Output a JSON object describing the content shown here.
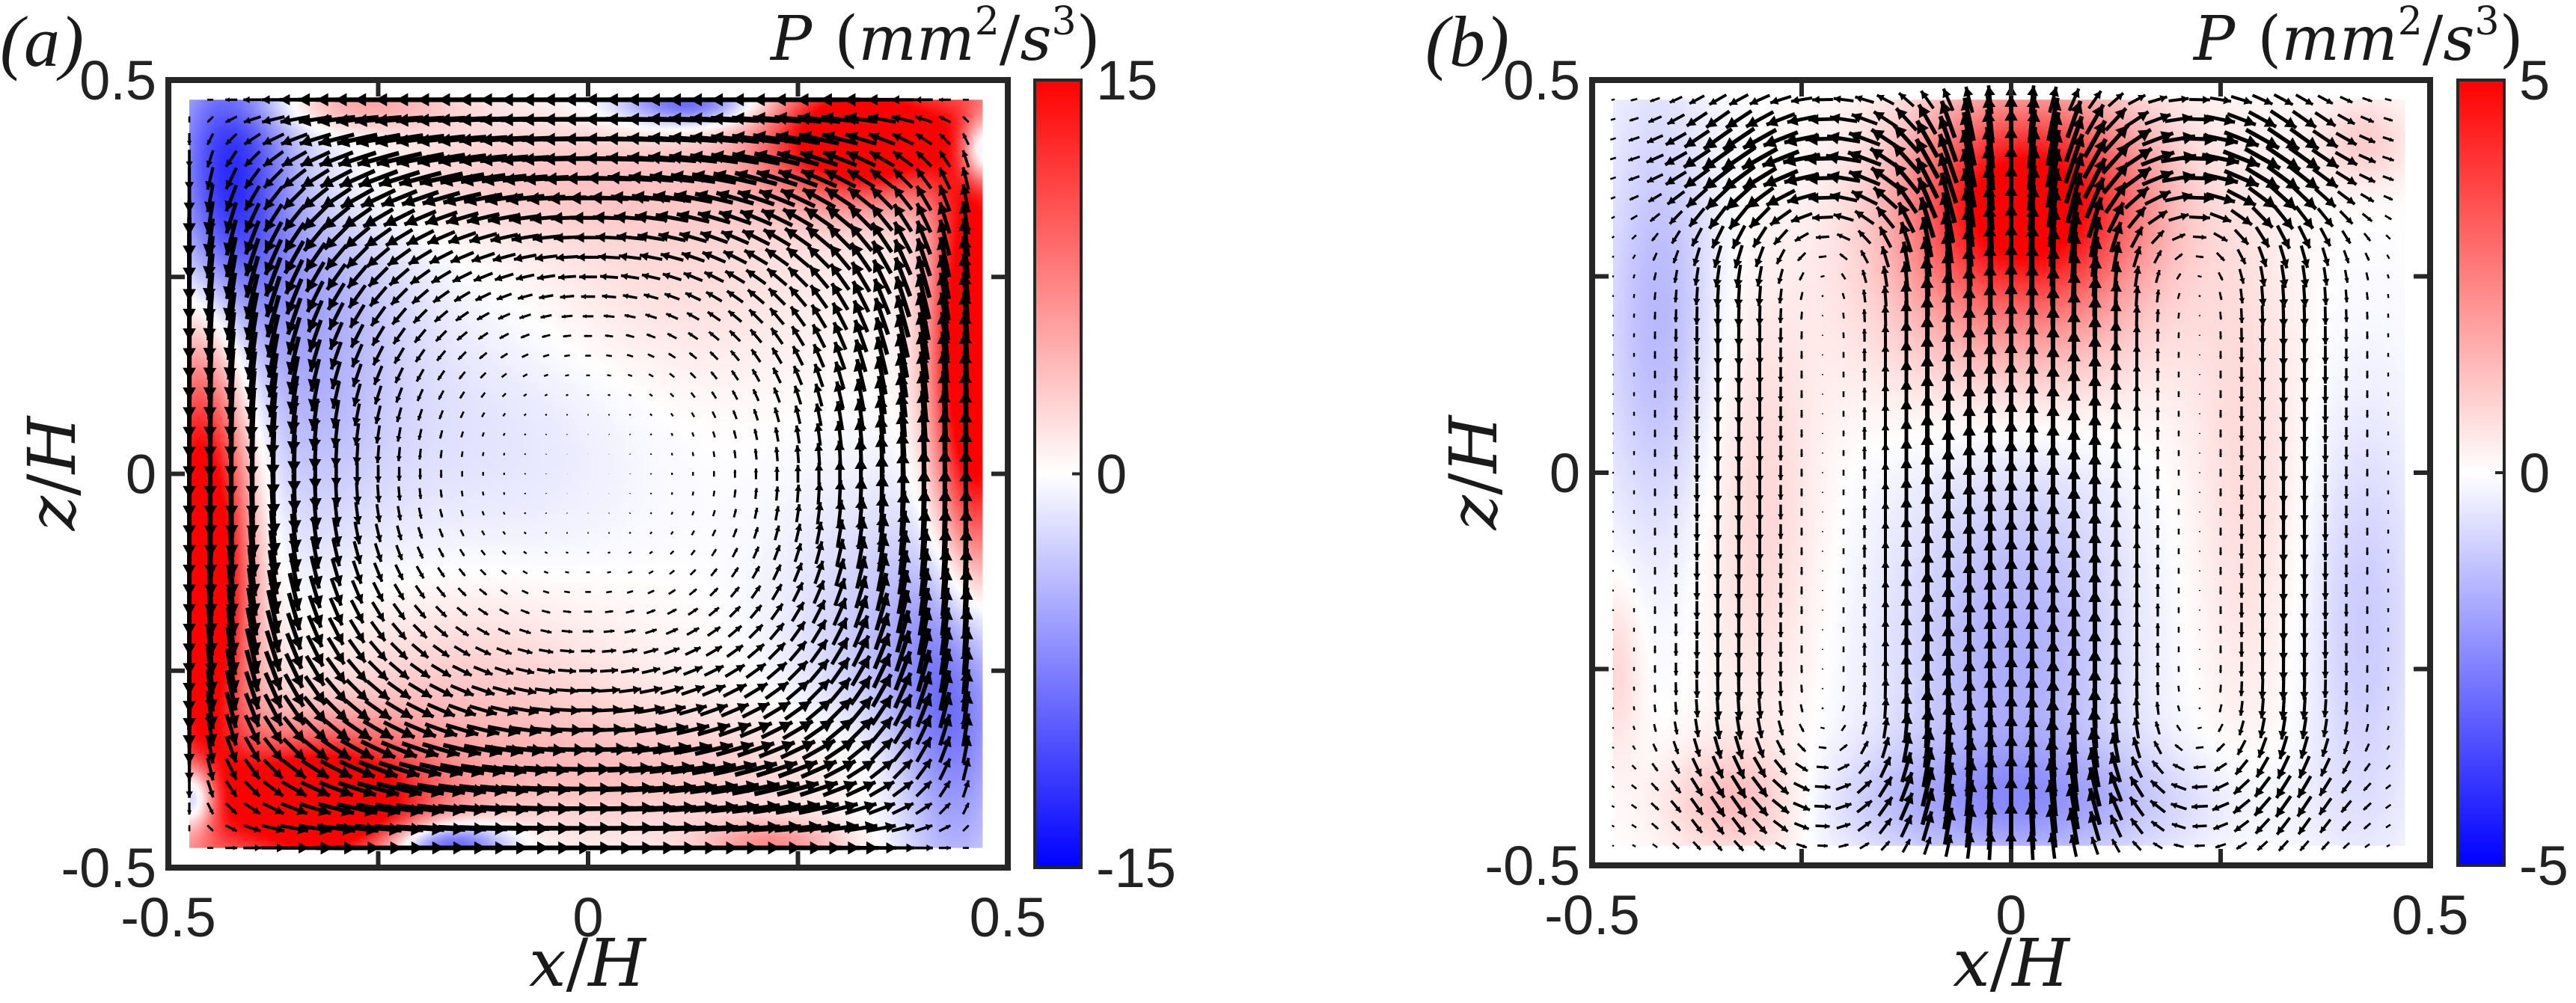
{
  "figure": {
    "panels": [
      "a",
      "b"
    ]
  },
  "chart_data": [
    {
      "type": "heatmap",
      "subtype": "vector-field-over-colormap",
      "panel_label": "(a)",
      "title": "P (mm²/s³)",
      "colorbar_label": {
        "symbol": "P",
        "units_open": "(mm",
        "sup1": "2",
        "mid": "/s",
        "sup2": "3",
        "units_close": ")"
      },
      "xlabel": {
        "num": "x",
        "den": "H"
      },
      "ylabel": {
        "num": "z",
        "den": "H"
      },
      "xlim": [
        -0.5,
        0.5
      ],
      "ylim": [
        -0.5,
        0.5
      ],
      "x_ticks": [
        -0.5,
        -0.25,
        0,
        0.25,
        0.5
      ],
      "x_tick_labels": [
        "-0.5",
        "",
        "0",
        "",
        "0.5"
      ],
      "y_ticks": [
        -0.5,
        -0.25,
        0,
        0.25,
        0.5
      ],
      "y_tick_labels": [
        "-0.5",
        "",
        "0",
        "",
        "0.5"
      ],
      "colorbar": {
        "range": [
          -15,
          15
        ],
        "ticks": [
          -15,
          0,
          15
        ],
        "tick_labels": [
          "-15",
          "0",
          "15"
        ],
        "colormap": [
          "#0000ff",
          "#ffffff",
          "#ff0000"
        ]
      },
      "data_extent": {
        "x": [
          -0.475,
          0.47
        ],
        "z": [
          -0.475,
          0.475
        ]
      },
      "grid_step": 0.025,
      "flow": {
        "pattern": "single counter-clockwise large-scale circulation roll centred near (0, 0)",
        "center": [
          0.0,
          0.0
        ],
        "rotation": "counter-clockwise",
        "max_speed_rel": 1.0
      },
      "field_blobs": [
        {
          "x": -0.46,
          "z": -0.12,
          "sx": 0.04,
          "sz": 0.2,
          "P": 22
        },
        {
          "x": -0.32,
          "z": -0.42,
          "sx": 0.09,
          "sz": 0.06,
          "P": 22
        },
        {
          "x": 0.46,
          "z": 0.15,
          "sx": 0.035,
          "sz": 0.2,
          "P": 22
        },
        {
          "x": 0.33,
          "z": 0.43,
          "sx": 0.08,
          "sz": 0.055,
          "P": 22
        },
        {
          "x": -0.43,
          "z": 0.38,
          "sx": 0.05,
          "sz": 0.12,
          "P": -12
        },
        {
          "x": -0.34,
          "z": 0.2,
          "sx": 0.09,
          "sz": 0.2,
          "P": -5
        },
        {
          "x": 0.44,
          "z": -0.3,
          "sx": 0.05,
          "sz": 0.15,
          "P": -9
        },
        {
          "x": 0.34,
          "z": -0.22,
          "sx": 0.08,
          "sz": 0.14,
          "P": -3
        },
        {
          "x": -0.47,
          "z": -0.41,
          "sx": 0.02,
          "sz": 0.03,
          "P": -15
        },
        {
          "x": 0.47,
          "z": 0.41,
          "sx": 0.02,
          "sz": 0.03,
          "P": -15
        },
        {
          "x": -0.17,
          "z": -0.47,
          "sx": 0.05,
          "sz": 0.02,
          "P": -13
        },
        {
          "x": 0.12,
          "z": 0.47,
          "sx": 0.06,
          "sz": 0.02,
          "P": -10
        },
        {
          "x": -0.28,
          "z": 0.47,
          "sx": 0.08,
          "sz": 0.025,
          "P": 6
        },
        {
          "x": 0.22,
          "z": -0.47,
          "sx": 0.06,
          "sz": 0.02,
          "P": 6
        },
        {
          "x": -0.05,
          "z": 0.38,
          "sx": 0.25,
          "sz": 0.06,
          "P": 3
        },
        {
          "x": 0.1,
          "z": -0.38,
          "sx": 0.25,
          "sz": 0.06,
          "P": 3
        },
        {
          "x": -0.15,
          "z": -0.28,
          "sx": 0.15,
          "sz": 0.1,
          "P": 3
        },
        {
          "x": 0.1,
          "z": 0.25,
          "sx": 0.15,
          "sz": 0.1,
          "P": 2
        },
        {
          "x": -0.1,
          "z": 0.05,
          "sx": 0.12,
          "sz": 0.15,
          "P": -1.5
        }
      ]
    },
    {
      "type": "heatmap",
      "subtype": "vector-field-over-colormap",
      "panel_label": "(b)",
      "title": "P (mm²/s³)",
      "colorbar_label": {
        "symbol": "P",
        "units_open": "(mm",
        "sup1": "2",
        "mid": "/s",
        "sup2": "3",
        "units_close": ")"
      },
      "xlabel": {
        "num": "x",
        "den": "H"
      },
      "ylabel": {
        "num": "z",
        "den": "H"
      },
      "xlim": [
        -0.5,
        0.5
      ],
      "ylim": [
        -0.5,
        0.5
      ],
      "x_ticks": [
        -0.5,
        -0.25,
        0,
        0.25,
        0.5
      ],
      "x_tick_labels": [
        "-0.5",
        "",
        "0",
        "",
        "0.5"
      ],
      "y_ticks": [
        -0.5,
        -0.25,
        0,
        0.25,
        0.5
      ],
      "y_tick_labels": [
        "-0.5",
        "",
        "0",
        "",
        "0.5"
      ],
      "colorbar": {
        "range": [
          -5,
          5
        ],
        "ticks": [
          -5,
          0,
          5
        ],
        "tick_labels": [
          "-5",
          "0",
          "5"
        ],
        "colormap": [
          "#0000ff",
          "#ffffff",
          "#ff0000"
        ]
      },
      "data_extent": {
        "x": [
          -0.475,
          0.47
        ],
        "z": [
          -0.475,
          0.475
        ]
      },
      "grid_step": 0.025,
      "flow": {
        "pattern": "central upward jet at x≈0 with two counter-rotating side rolls returning downward near x≈±0.35",
        "center": [
          0.0,
          0.0
        ],
        "rotation": "counter-rotating pair",
        "max_speed_rel": 1.0
      },
      "field_blobs": [
        {
          "x": 0.02,
          "z": 0.35,
          "sx": 0.1,
          "sz": 0.09,
          "P": 5.5
        },
        {
          "x": 0.0,
          "z": 0.2,
          "sx": 0.12,
          "sz": 0.1,
          "P": 1.5
        },
        {
          "x": 0.0,
          "z": -0.25,
          "sx": 0.1,
          "sz": 0.2,
          "P": -1.6
        },
        {
          "x": 0.0,
          "z": -0.42,
          "sx": 0.18,
          "sz": 0.05,
          "P": -1.2
        },
        {
          "x": -0.42,
          "z": 0.2,
          "sx": 0.05,
          "sz": 0.2,
          "P": -1.4
        },
        {
          "x": 0.42,
          "z": -0.2,
          "sx": 0.05,
          "sz": 0.2,
          "P": -1.0
        },
        {
          "x": -0.33,
          "z": -0.42,
          "sx": 0.06,
          "sz": 0.05,
          "P": 1.4
        },
        {
          "x": -0.3,
          "z": -0.05,
          "sx": 0.05,
          "sz": 0.2,
          "P": 0.8
        },
        {
          "x": 0.28,
          "z": 0.0,
          "sx": 0.05,
          "sz": 0.25,
          "P": 0.7
        },
        {
          "x": 0.42,
          "z": 0.42,
          "sx": 0.04,
          "sz": 0.04,
          "P": 1.0
        },
        {
          "x": -0.47,
          "z": -0.25,
          "sx": 0.02,
          "sz": 0.08,
          "P": 0.8
        }
      ]
    }
  ]
}
